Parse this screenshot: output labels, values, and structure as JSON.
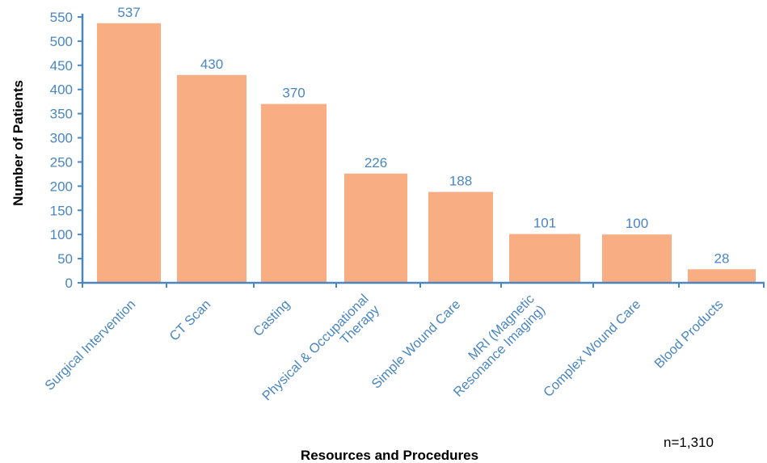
{
  "colors": {
    "bar": "#f8ad83",
    "axis": "#4a86c0",
    "text": "#4a86c0"
  },
  "chart_data": {
    "type": "bar",
    "categories": [
      [
        "Surgical Intervention"
      ],
      [
        "CT Scan"
      ],
      [
        "Casting"
      ],
      [
        "Physical & Occupational",
        "Therapy"
      ],
      [
        "Simple Wound Care"
      ],
      [
        "MRI (Magnetic",
        "Resonance Imaging)"
      ],
      [
        "Complex Wound Care"
      ],
      [
        "Blood Products"
      ]
    ],
    "values": [
      537,
      430,
      370,
      226,
      188,
      101,
      100,
      28
    ],
    "ylim": [
      0,
      550
    ],
    "yticks": [
      0,
      50,
      100,
      150,
      200,
      250,
      300,
      350,
      400,
      450,
      500,
      550
    ],
    "xlabel": "Resources and Procedures",
    "ylabel": "Number of Patients",
    "note": "n=1,310",
    "grid": false,
    "legend": "none"
  }
}
